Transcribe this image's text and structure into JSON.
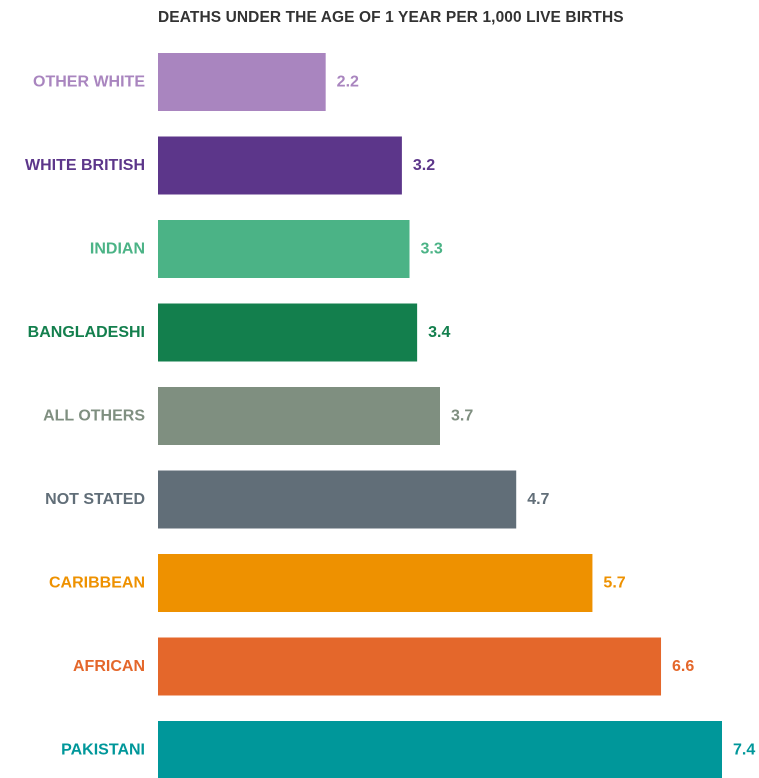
{
  "chart_data": {
    "type": "bar",
    "orientation": "horizontal",
    "title": "DEATHS UNDER THE AGE OF 1 YEAR PER 1,000 LIVE BIRTHS",
    "categories": [
      "OTHER WHITE",
      "WHITE BRITISH",
      "INDIAN",
      "BANGLADESHI",
      "ALL OTHERS",
      "NOT STATED",
      "CARIBBEAN",
      "AFRICAN",
      "PAKISTANI"
    ],
    "values": [
      2.2,
      3.2,
      3.3,
      3.4,
      3.7,
      4.7,
      5.7,
      6.6,
      7.4
    ],
    "value_labels": [
      "2.2",
      "3.2",
      "3.3",
      "3.4",
      "3.7",
      "4.7",
      "5.7",
      "6.6",
      "7.4"
    ],
    "colors": [
      "#a985bf",
      "#5c368a",
      "#4bb386",
      "#137f4d",
      "#7f8f80",
      "#616e78",
      "#ee9100",
      "#e4672b",
      "#00979a"
    ],
    "xlabel": "",
    "ylabel": "",
    "xlim": [
      0,
      7.4
    ],
    "grid": false,
    "legend": "none"
  }
}
